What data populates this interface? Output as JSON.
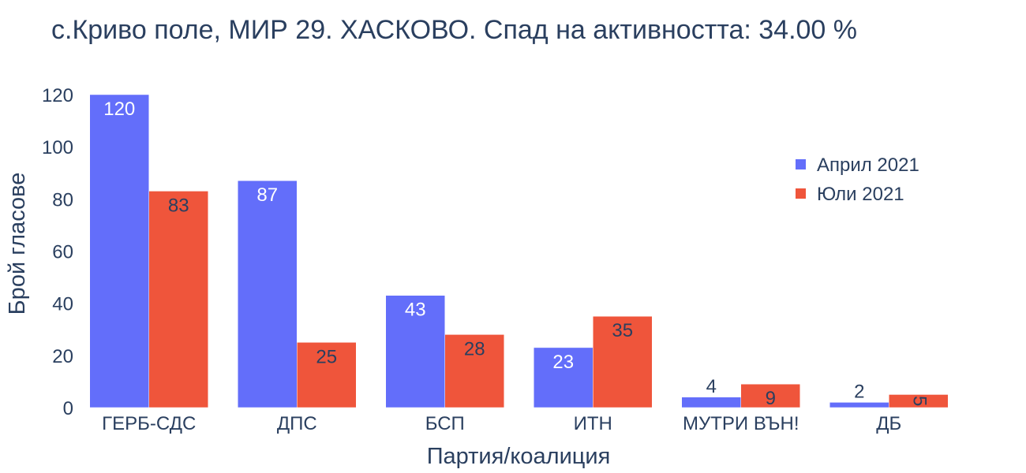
{
  "chart_data": {
    "type": "bar",
    "title": "с.Криво поле, МИР 29. ХАСКОВО. Спад на активността: 34.00 %",
    "xlabel": "Партия/коалиция",
    "ylabel": "Брой гласове",
    "categories": [
      "ГЕРБ-СДС",
      "ДПС",
      "БСП",
      "ИТН",
      "МУТРИ ВЪН!",
      "ДБ"
    ],
    "series": [
      {
        "name": "Април 2021",
        "color": "#636efa",
        "values": [
          120,
          87,
          43,
          23,
          4,
          2
        ]
      },
      {
        "name": "Юли 2021",
        "color": "#ef553b",
        "values": [
          83,
          25,
          28,
          35,
          9,
          5
        ]
      }
    ],
    "ylim": [
      0,
      120
    ],
    "yticks": [
      0,
      20,
      40,
      60,
      80,
      100,
      120
    ],
    "grid": false,
    "legend_position": "top-right"
  }
}
